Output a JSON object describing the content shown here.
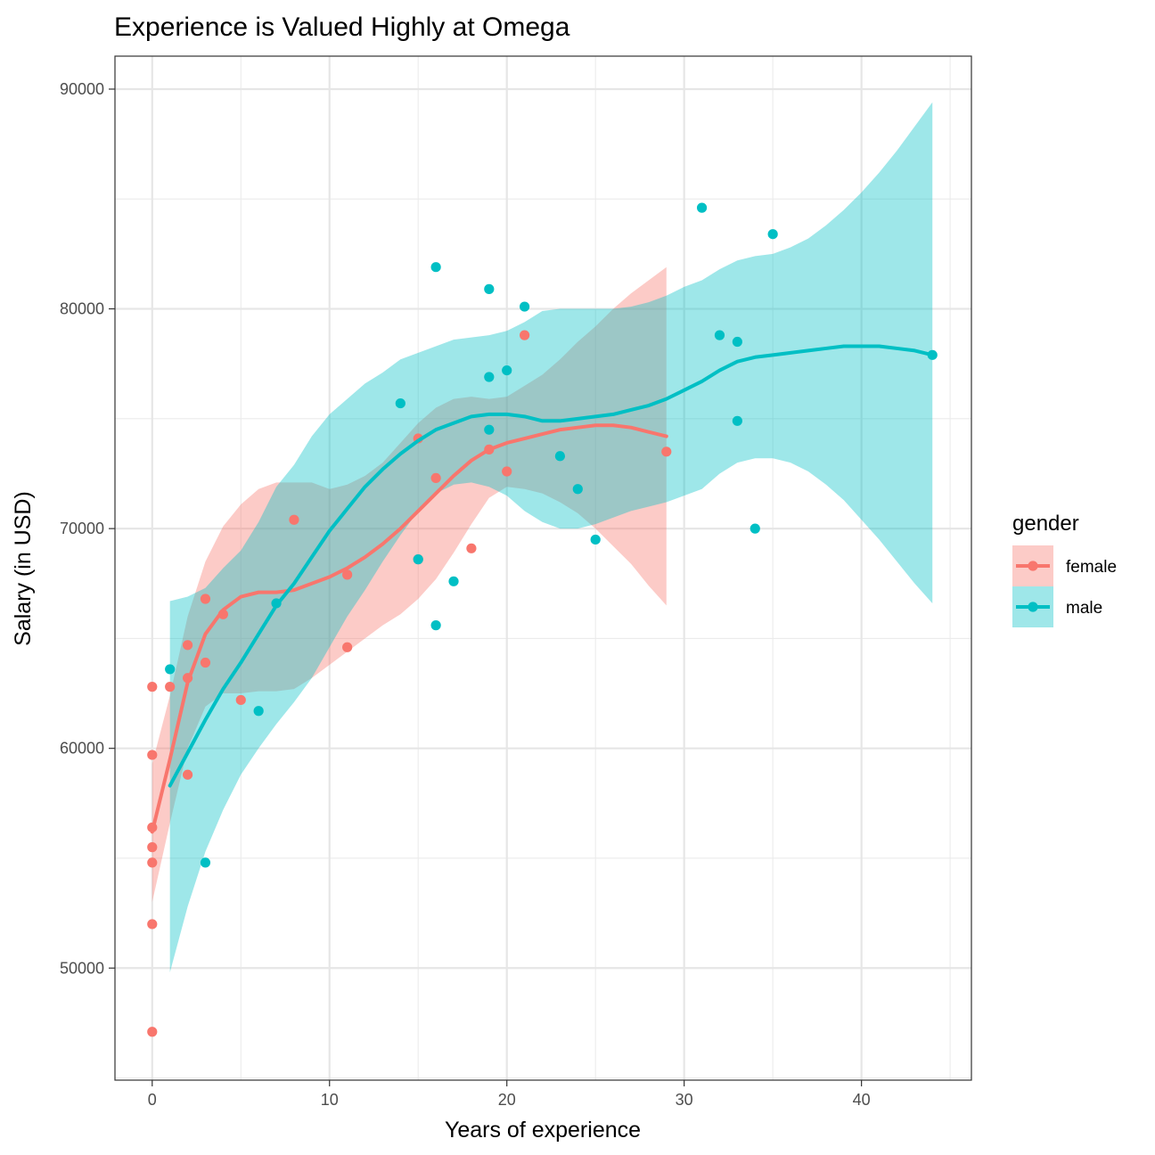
{
  "chart_data": {
    "type": "scatter",
    "title": "Experience is Valued Highly at Omega",
    "xlabel": "Years of experience",
    "ylabel": "Salary (in USD)",
    "xlim": [
      -2.1,
      46.2
    ],
    "ylim": [
      44900,
      91500
    ],
    "x_ticks": [
      0,
      10,
      20,
      30,
      40
    ],
    "x_tick_labels": [
      "0",
      "10",
      "20",
      "30",
      "40"
    ],
    "y_ticks": [
      50000,
      60000,
      70000,
      80000,
      90000
    ],
    "y_tick_labels": [
      "50000",
      "60000",
      "70000",
      "80000",
      "90000"
    ],
    "grid": true,
    "legend": {
      "title": "gender",
      "position": "right"
    },
    "series": [
      {
        "name": "female",
        "color": "#F8766D",
        "points": [
          [
            0,
            47100
          ],
          [
            0,
            52000
          ],
          [
            0,
            54800
          ],
          [
            0,
            55500
          ],
          [
            0,
            56400
          ],
          [
            0,
            59700
          ],
          [
            0,
            62800
          ],
          [
            1,
            62800
          ],
          [
            2,
            58800
          ],
          [
            2,
            63200
          ],
          [
            2,
            64700
          ],
          [
            3,
            63900
          ],
          [
            3,
            66800
          ],
          [
            4,
            66100
          ],
          [
            5,
            62200
          ],
          [
            8,
            70400
          ],
          [
            11,
            67900
          ],
          [
            11,
            64600
          ],
          [
            15,
            74100
          ],
          [
            15,
            68600
          ],
          [
            16,
            72300
          ],
          [
            18,
            69100
          ],
          [
            19,
            73600
          ],
          [
            20,
            72600
          ],
          [
            21,
            78800
          ],
          [
            29,
            73500
          ]
        ],
        "smooth": [
          [
            0,
            56200
          ],
          [
            1,
            59500
          ],
          [
            2,
            63000
          ],
          [
            3,
            65200
          ],
          [
            4,
            66300
          ],
          [
            5,
            66900
          ],
          [
            6,
            67100
          ],
          [
            7,
            67100
          ],
          [
            8,
            67200
          ],
          [
            9,
            67500
          ],
          [
            10,
            67800
          ],
          [
            11,
            68200
          ],
          [
            12,
            68700
          ],
          [
            13,
            69300
          ],
          [
            14,
            70000
          ],
          [
            15,
            70800
          ],
          [
            16,
            71600
          ],
          [
            17,
            72400
          ],
          [
            18,
            73100
          ],
          [
            19,
            73600
          ],
          [
            20,
            73900
          ],
          [
            21,
            74100
          ],
          [
            22,
            74300
          ],
          [
            23,
            74500
          ],
          [
            24,
            74600
          ],
          [
            25,
            74700
          ],
          [
            26,
            74700
          ],
          [
            27,
            74600
          ],
          [
            28,
            74400
          ],
          [
            29,
            74200
          ]
        ],
        "band_lower": [
          [
            0,
            53000
          ],
          [
            1,
            56600
          ],
          [
            2,
            60000
          ],
          [
            3,
            61900
          ],
          [
            4,
            62500
          ],
          [
            5,
            62500
          ],
          [
            6,
            62600
          ],
          [
            7,
            62600
          ],
          [
            8,
            62700
          ],
          [
            9,
            63200
          ],
          [
            10,
            63800
          ],
          [
            11,
            64400
          ],
          [
            12,
            65000
          ],
          [
            13,
            65600
          ],
          [
            14,
            66100
          ],
          [
            15,
            66800
          ],
          [
            16,
            67700
          ],
          [
            17,
            68900
          ],
          [
            18,
            70200
          ],
          [
            19,
            71400
          ],
          [
            20,
            71900
          ],
          [
            21,
            71800
          ],
          [
            22,
            71600
          ],
          [
            23,
            71200
          ],
          [
            24,
            70700
          ],
          [
            25,
            70000
          ],
          [
            26,
            69200
          ],
          [
            27,
            68400
          ],
          [
            28,
            67400
          ],
          [
            29,
            66500
          ]
        ],
        "band_upper": [
          [
            0,
            59300
          ],
          [
            1,
            62400
          ],
          [
            2,
            66000
          ],
          [
            3,
            68500
          ],
          [
            4,
            70100
          ],
          [
            5,
            71100
          ],
          [
            6,
            71800
          ],
          [
            7,
            72100
          ],
          [
            8,
            72100
          ],
          [
            9,
            72100
          ],
          [
            10,
            71800
          ],
          [
            11,
            72000
          ],
          [
            12,
            72400
          ],
          [
            13,
            73000
          ],
          [
            14,
            73900
          ],
          [
            15,
            74800
          ],
          [
            16,
            75500
          ],
          [
            17,
            75900
          ],
          [
            18,
            76000
          ],
          [
            19,
            75900
          ],
          [
            20,
            76000
          ],
          [
            21,
            76500
          ],
          [
            22,
            77000
          ],
          [
            23,
            77700
          ],
          [
            24,
            78500
          ],
          [
            25,
            79200
          ],
          [
            26,
            80000
          ],
          [
            27,
            80700
          ],
          [
            28,
            81300
          ],
          [
            29,
            81900
          ]
        ]
      },
      {
        "name": "male",
        "color": "#00BFC4",
        "points": [
          [
            1,
            63600
          ],
          [
            3,
            54800
          ],
          [
            6,
            61700
          ],
          [
            7,
            66600
          ],
          [
            14,
            75700
          ],
          [
            15,
            68600
          ],
          [
            16,
            81900
          ],
          [
            16,
            65600
          ],
          [
            17,
            67600
          ],
          [
            19,
            80900
          ],
          [
            19,
            76900
          ],
          [
            19,
            74500
          ],
          [
            20,
            77200
          ],
          [
            21,
            80100
          ],
          [
            23,
            73300
          ],
          [
            24,
            71800
          ],
          [
            25,
            69500
          ],
          [
            31,
            84600
          ],
          [
            32,
            78800
          ],
          [
            33,
            78500
          ],
          [
            33,
            74900
          ],
          [
            34,
            70000
          ],
          [
            35,
            83400
          ],
          [
            44,
            77900
          ]
        ],
        "smooth": [
          [
            1,
            58300
          ],
          [
            2,
            59800
          ],
          [
            3,
            61300
          ],
          [
            4,
            62700
          ],
          [
            5,
            63900
          ],
          [
            6,
            65200
          ],
          [
            7,
            66500
          ],
          [
            8,
            67500
          ],
          [
            9,
            68700
          ],
          [
            10,
            69900
          ],
          [
            11,
            70900
          ],
          [
            12,
            71900
          ],
          [
            13,
            72700
          ],
          [
            14,
            73400
          ],
          [
            15,
            74000
          ],
          [
            16,
            74500
          ],
          [
            17,
            74800
          ],
          [
            18,
            75100
          ],
          [
            19,
            75200
          ],
          [
            20,
            75200
          ],
          [
            21,
            75100
          ],
          [
            22,
            74900
          ],
          [
            23,
            74900
          ],
          [
            24,
            75000
          ],
          [
            25,
            75100
          ],
          [
            26,
            75200
          ],
          [
            27,
            75400
          ],
          [
            28,
            75600
          ],
          [
            29,
            75900
          ],
          [
            30,
            76300
          ],
          [
            31,
            76700
          ],
          [
            32,
            77200
          ],
          [
            33,
            77600
          ],
          [
            34,
            77800
          ],
          [
            35,
            77900
          ],
          [
            36,
            78000
          ],
          [
            37,
            78100
          ],
          [
            38,
            78200
          ],
          [
            39,
            78300
          ],
          [
            40,
            78300
          ],
          [
            41,
            78300
          ],
          [
            42,
            78200
          ],
          [
            43,
            78100
          ],
          [
            44,
            77900
          ]
        ],
        "band_lower": [
          [
            1,
            49800
          ],
          [
            2,
            52800
          ],
          [
            3,
            55300
          ],
          [
            4,
            57200
          ],
          [
            5,
            58800
          ],
          [
            6,
            60000
          ],
          [
            7,
            61100
          ],
          [
            8,
            62100
          ],
          [
            9,
            63200
          ],
          [
            10,
            64600
          ],
          [
            11,
            66000
          ],
          [
            12,
            67200
          ],
          [
            13,
            68500
          ],
          [
            14,
            69700
          ],
          [
            15,
            70800
          ],
          [
            16,
            71600
          ],
          [
            17,
            72000
          ],
          [
            18,
            72100
          ],
          [
            19,
            71900
          ],
          [
            20,
            71500
          ],
          [
            21,
            70800
          ],
          [
            22,
            70300
          ],
          [
            23,
            70000
          ],
          [
            24,
            70000
          ],
          [
            25,
            70200
          ],
          [
            26,
            70500
          ],
          [
            27,
            70800
          ],
          [
            28,
            71000
          ],
          [
            29,
            71200
          ],
          [
            30,
            71500
          ],
          [
            31,
            71800
          ],
          [
            32,
            72500
          ],
          [
            33,
            73000
          ],
          [
            34,
            73200
          ],
          [
            35,
            73200
          ],
          [
            36,
            73000
          ],
          [
            37,
            72600
          ],
          [
            38,
            72000
          ],
          [
            39,
            71300
          ],
          [
            40,
            70400
          ],
          [
            41,
            69500
          ],
          [
            42,
            68500
          ],
          [
            43,
            67500
          ],
          [
            44,
            66600
          ]
        ],
        "band_upper": [
          [
            1,
            66700
          ],
          [
            2,
            66900
          ],
          [
            3,
            67300
          ],
          [
            4,
            68200
          ],
          [
            5,
            69000
          ],
          [
            6,
            70300
          ],
          [
            7,
            71900
          ],
          [
            8,
            72900
          ],
          [
            9,
            74200
          ],
          [
            10,
            75200
          ],
          [
            11,
            75900
          ],
          [
            12,
            76600
          ],
          [
            13,
            77100
          ],
          [
            14,
            77700
          ],
          [
            15,
            78000
          ],
          [
            16,
            78300
          ],
          [
            17,
            78600
          ],
          [
            18,
            78700
          ],
          [
            19,
            78800
          ],
          [
            20,
            79000
          ],
          [
            21,
            79400
          ],
          [
            22,
            79900
          ],
          [
            23,
            80000
          ],
          [
            24,
            80000
          ],
          [
            25,
            80000
          ],
          [
            26,
            80000
          ],
          [
            27,
            80100
          ],
          [
            28,
            80300
          ],
          [
            29,
            80600
          ],
          [
            30,
            81000
          ],
          [
            31,
            81300
          ],
          [
            32,
            81800
          ],
          [
            33,
            82200
          ],
          [
            34,
            82400
          ],
          [
            35,
            82500
          ],
          [
            36,
            82800
          ],
          [
            37,
            83200
          ],
          [
            38,
            83800
          ],
          [
            39,
            84500
          ],
          [
            40,
            85300
          ],
          [
            41,
            86200
          ],
          [
            42,
            87200
          ],
          [
            43,
            88300
          ],
          [
            44,
            89400
          ]
        ]
      }
    ]
  }
}
